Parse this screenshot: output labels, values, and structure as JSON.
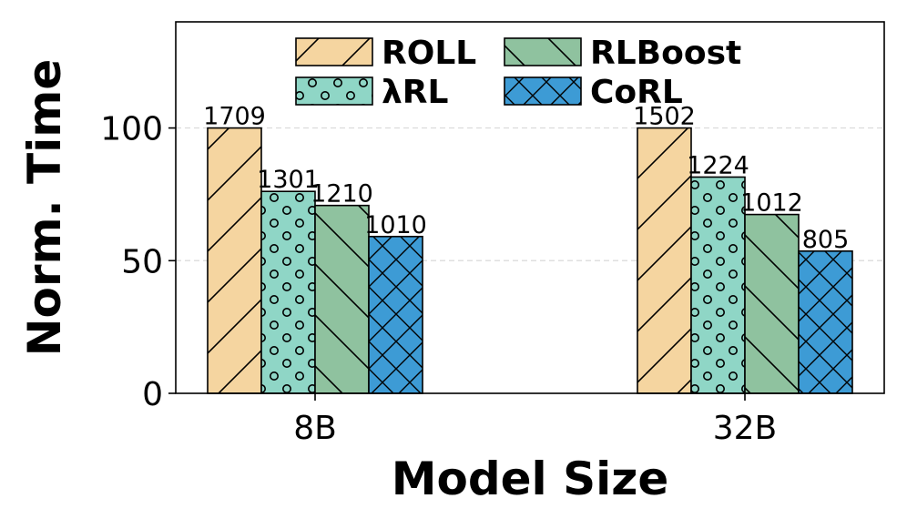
{
  "chart_data": {
    "type": "bar",
    "title": "",
    "xlabel": "Model Size",
    "ylabel": "Norm. Time",
    "categories": [
      "8B",
      "32B"
    ],
    "ylim": [
      0,
      140
    ],
    "yticks": [
      0,
      50,
      100
    ],
    "grid": "horizontal dashed",
    "legend_position": "top-center",
    "series": [
      {
        "name": "ROLL",
        "values": [
          100,
          100
        ],
        "labels": [
          "1709",
          "1502"
        ],
        "color": "#f5d5a0",
        "pattern": "diagonal-forward"
      },
      {
        "name": "λRL",
        "values": [
          76.1,
          81.5
        ],
        "labels": [
          "1301",
          "1224"
        ],
        "color": "#8fd6c6",
        "pattern": "circles"
      },
      {
        "name": "RLBoost",
        "values": [
          70.8,
          67.4
        ],
        "labels": [
          "1210",
          "1012"
        ],
        "color": "#8fc29f",
        "pattern": "diagonal-back"
      },
      {
        "name": "CoRL",
        "values": [
          59.1,
          53.6
        ],
        "labels": [
          "1010",
          "805"
        ],
        "color": "#3d9bd5",
        "pattern": "crosshatch"
      }
    ]
  }
}
